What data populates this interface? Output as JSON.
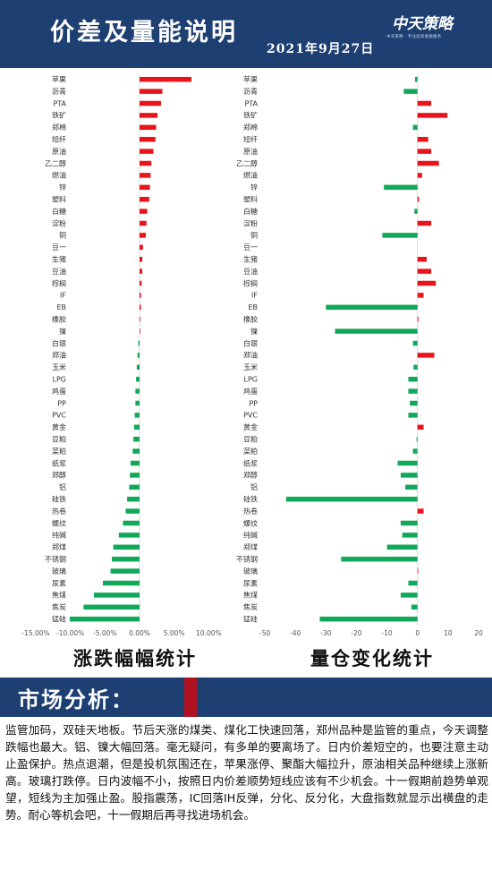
{
  "header": {
    "title": "价差及量能说明",
    "date": "2021年9月27日",
    "logo": "中天策略",
    "logo_sub": "中天策略 · 专注投资金融服务"
  },
  "chart_data": [
    {
      "type": "bar",
      "orientation": "horizontal",
      "caption": "涨跌幅幅统计",
      "categories": [
        "苹果",
        "沥青",
        "PTA",
        "铁矿",
        "郑棉",
        "短纤",
        "原油",
        "乙二醇",
        "燃油",
        "锌",
        "塑料",
        "白糖",
        "淀粉",
        "铜",
        "豆一",
        "生猪",
        "豆油",
        "棕榈",
        "IF",
        "EB",
        "橡胶",
        "镍",
        "白银",
        "郑油",
        "玉米",
        "LPG",
        "鸡蛋",
        "PP",
        "PVC",
        "黄金",
        "豆粕",
        "菜粕",
        "纸浆",
        "郑醇",
        "铝",
        "硅铁",
        "热卷",
        "螺纹",
        "纯碱",
        "郑煤",
        "不锈钢",
        "玻璃",
        "尿素",
        "焦煤",
        "焦炭",
        "锰硅"
      ],
      "values": [
        7.5,
        3.3,
        3.1,
        2.6,
        2.4,
        2.3,
        2.0,
        1.7,
        1.6,
        1.5,
        1.4,
        1.1,
        1.0,
        0.9,
        0.5,
        0.4,
        0.4,
        0.3,
        0.2,
        0.2,
        0.1,
        0.1,
        -0.2,
        -0.3,
        -0.4,
        -0.5,
        -0.6,
        -0.6,
        -0.7,
        -0.8,
        -0.9,
        -1.0,
        -1.3,
        -1.4,
        -1.5,
        -1.8,
        -2.0,
        -2.4,
        -3.0,
        -3.8,
        -4.0,
        -4.2,
        -5.3,
        -6.6,
        -8.1,
        -10.1
      ],
      "xlim": [
        -15,
        15
      ],
      "ticks": [
        "-15.00%",
        "-10.00%",
        "-5.00%",
        "0.00%",
        "5.00%",
        "10.00%"
      ],
      "positive_color": "#e8141b",
      "negative_color": "#12a85a",
      "grid": false
    },
    {
      "type": "bar",
      "orientation": "horizontal",
      "caption": "量仓变化统计",
      "categories": [
        "苹果",
        "沥青",
        "PTA",
        "铁矿",
        "郑棉",
        "短纤",
        "原油",
        "乙二醇",
        "燃油",
        "锌",
        "塑料",
        "白糖",
        "淀粉",
        "铜",
        "豆一",
        "生猪",
        "豆油",
        "棕榈",
        "IF",
        "EB",
        "橡胶",
        "镍",
        "白银",
        "郑油",
        "玉米",
        "LPG",
        "鸡蛋",
        "PP",
        "PVC",
        "黄金",
        "豆粕",
        "菜粕",
        "纸浆",
        "郑醇",
        "铝",
        "硅铁",
        "热卷",
        "螺纹",
        "纯碱",
        "郑煤",
        "不锈钢",
        "玻璃",
        "尿素",
        "焦煤",
        "焦炭",
        "锰硅"
      ],
      "values": [
        -0.8,
        -4.5,
        4.5,
        9.8,
        -1.5,
        3.5,
        4.5,
        7.0,
        1.5,
        -11.0,
        0.5,
        -1.0,
        4.5,
        -11.5,
        0,
        3.0,
        4.5,
        6.0,
        2.0,
        -30.0,
        0.3,
        -27.0,
        -1.5,
        5.5,
        -1.3,
        -3.0,
        -3.0,
        -2.5,
        -3.0,
        2.0,
        -0.3,
        -1.5,
        -6.5,
        -5.5,
        -4.0,
        -43.0,
        2.0,
        -5.5,
        -5.0,
        -10.0,
        -25.0,
        0.2,
        -3.0,
        -5.5,
        -2.0,
        -32.0
      ],
      "xlim": [
        -50,
        20
      ],
      "ticks": [
        "-50",
        "-40",
        "-30",
        "-20",
        "-10",
        "0",
        "10",
        "20"
      ],
      "positive_color": "#e8141b",
      "negative_color": "#12a85a",
      "grid": false
    }
  ],
  "banner": {
    "title": "市场分析："
  },
  "analysis": {
    "text": "监管加码，双硅天地板。节后天涨的煤类、煤化工快速回落，郑州品种是监管的重点，今天调整跌幅也最大。铝、镍大幅回落。毫无疑问，有多单的要离场了。日内价差短空的，也要注意主动止盈保护。热点退潮，但是投机氛围还在，苹果涨停、聚酯大幅拉升，原油相关品种继续上涨新高。玻璃打跌停。日内波幅不小，按照日内价差顺势短线应该有不少机会。十一假期前趋势单观望，短线为主加强止盈。股指震荡，IC回落IH反弹，分化、反分化，大盘指数就显示出横盘的走势。耐心等机会吧，十一假期后再寻找进场机会。"
  }
}
